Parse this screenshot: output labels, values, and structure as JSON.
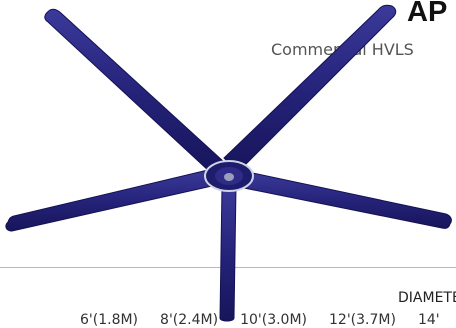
{
  "header": {
    "title": "AP",
    "subtitle": "Commercial HVLS"
  },
  "product_image": {
    "icon": "fan-icon",
    "color": "#25237a"
  },
  "diameter": {
    "label": "DIAMETER",
    "sizes": [
      "6'(1.8M)",
      "8'(2.4M)",
      "10'(3.0M)",
      "12'(3.7M)",
      "14'"
    ]
  }
}
